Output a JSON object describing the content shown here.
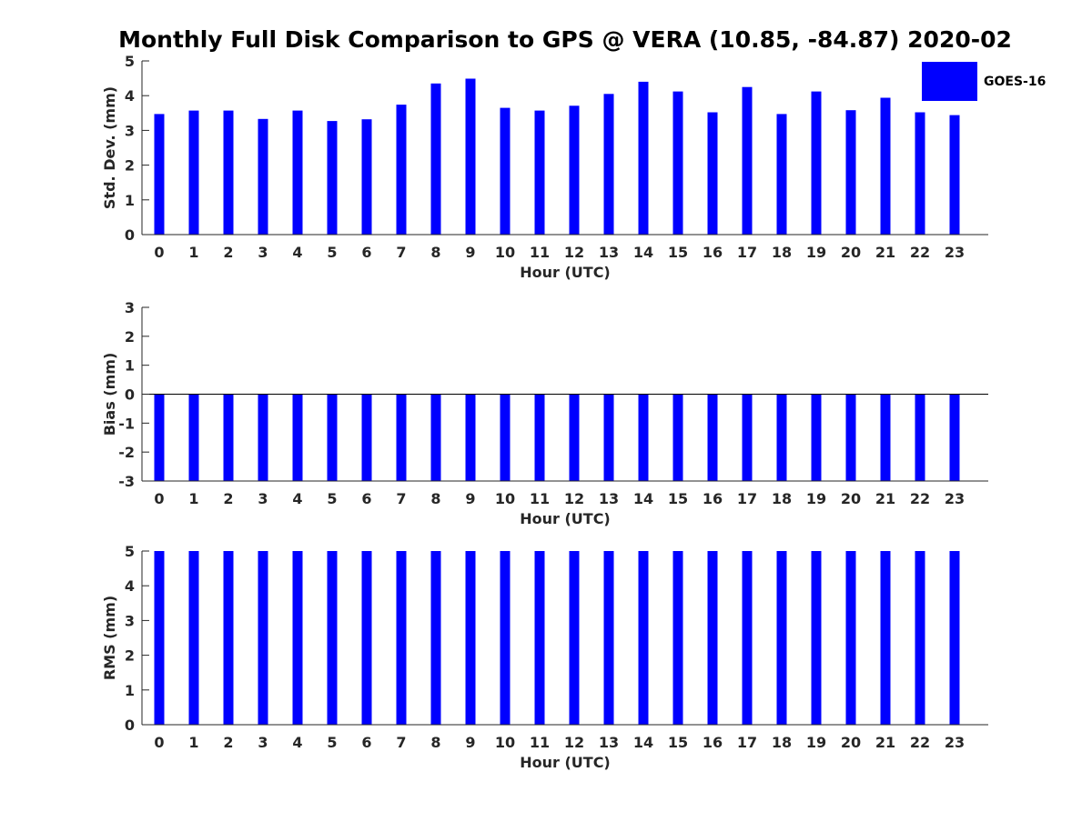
{
  "title": "Monthly Full Disk Comparison to GPS @ VERA (10.85, -84.87) 2020-02",
  "legend": {
    "label": "GOES-16",
    "position": "top-right",
    "color": "#0000ff"
  },
  "bar_color": "#0000ff",
  "chart_data": [
    {
      "type": "bar",
      "xlabel": "Hour (UTC)",
      "ylabel": "Std. Dev. (mm)",
      "categories": [
        "0",
        "1",
        "2",
        "3",
        "4",
        "5",
        "6",
        "7",
        "8",
        "9",
        "10",
        "11",
        "12",
        "13",
        "14",
        "15",
        "16",
        "17",
        "18",
        "19",
        "20",
        "21",
        "22",
        "23"
      ],
      "series": [
        {
          "name": "GOES-16",
          "values": [
            3.47,
            3.57,
            3.57,
            3.33,
            3.57,
            3.27,
            3.32,
            3.74,
            4.35,
            4.49,
            3.65,
            3.57,
            3.71,
            4.05,
            4.4,
            4.12,
            3.52,
            4.25,
            3.47,
            4.12,
            3.58,
            3.94,
            3.52,
            3.44
          ]
        }
      ],
      "ylim": [
        0,
        5
      ],
      "yticks": [
        "0",
        "1",
        "2",
        "3",
        "4",
        "5"
      ],
      "grid": false
    },
    {
      "type": "bar",
      "xlabel": "Hour (UTC)",
      "ylabel": "Bias (mm)",
      "categories": [
        "0",
        "1",
        "2",
        "3",
        "4",
        "5",
        "6",
        "7",
        "8",
        "9",
        "10",
        "11",
        "12",
        "13",
        "14",
        "15",
        "16",
        "17",
        "18",
        "19",
        "20",
        "21",
        "22",
        "23"
      ],
      "series": [
        {
          "name": "GOES-16",
          "values": [
            -3,
            -3,
            -3,
            -3,
            -3,
            -3,
            -3,
            -3,
            -3,
            -3,
            -3,
            -3,
            -3,
            -3,
            -3,
            -3,
            -3,
            -3,
            -3,
            -3,
            -3,
            -3,
            -3,
            -3
          ]
        }
      ],
      "ylim": [
        -3,
        3
      ],
      "yticks": [
        "-3",
        "-2",
        "-1",
        "0",
        "1",
        "2",
        "3"
      ],
      "zero_line": true,
      "grid": false
    },
    {
      "type": "bar",
      "xlabel": "Hour (UTC)",
      "ylabel": "RMS (mm)",
      "categories": [
        "0",
        "1",
        "2",
        "3",
        "4",
        "5",
        "6",
        "7",
        "8",
        "9",
        "10",
        "11",
        "12",
        "13",
        "14",
        "15",
        "16",
        "17",
        "18",
        "19",
        "20",
        "21",
        "22",
        "23"
      ],
      "series": [
        {
          "name": "GOES-16",
          "values": [
            5,
            5,
            5,
            5,
            5,
            5,
            5,
            5,
            5,
            5,
            5,
            5,
            5,
            5,
            5,
            5,
            5,
            5,
            5,
            5,
            5,
            5,
            5,
            5
          ]
        }
      ],
      "ylim": [
        0,
        5
      ],
      "yticks": [
        "0",
        "1",
        "2",
        "3",
        "4",
        "5"
      ],
      "grid": false
    }
  ]
}
